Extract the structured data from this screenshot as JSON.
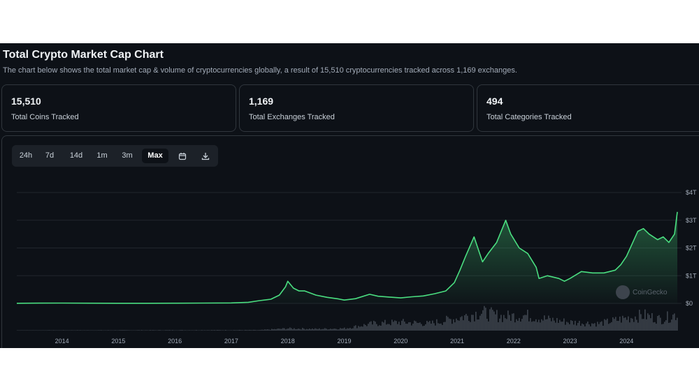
{
  "header": {
    "title": "Total Crypto Market Cap Chart",
    "subtitle": "The chart below shows the total market cap & volume of cryptocurrencies globally, a result of 15,510 cryptocurrencies tracked across 1,169 exchanges."
  },
  "stats": [
    {
      "value": "15,510",
      "label": "Total Coins Tracked"
    },
    {
      "value": "1,169",
      "label": "Total Exchanges Tracked"
    },
    {
      "value": "494",
      "label": "Total Categories Tracked"
    }
  ],
  "toolbar": {
    "ranges": [
      "24h",
      "7d",
      "14d",
      "1m",
      "3m",
      "Max"
    ],
    "selected": "Max",
    "icons": [
      "calendar-icon",
      "download-icon"
    ]
  },
  "watermark": "CoinGecko",
  "colors": {
    "line": "#4ade80",
    "background": "#0d1117",
    "grid": "#21262d",
    "volume": "#3d444d"
  },
  "chart_data": {
    "type": "area",
    "title": "",
    "xlabel": "",
    "ylabel": "",
    "y_unit": "USD",
    "x_ticks": [
      "2014",
      "2015",
      "2016",
      "2017",
      "2018",
      "2019",
      "2020",
      "2021",
      "2022",
      "2023",
      "2024"
    ],
    "y_ticks": [
      "$0",
      "$1T",
      "$2T",
      "$3T",
      "$4T"
    ],
    "ylim": [
      0,
      4
    ],
    "xlim": [
      2013.2,
      2024.9
    ],
    "grid": true,
    "series": [
      {
        "values_unit": "trillion USD",
        "x": [
          2013.2,
          2013.6,
          2014.0,
          2014.5,
          2015.0,
          2015.5,
          2016.0,
          2016.5,
          2017.0,
          2017.3,
          2017.5,
          2017.7,
          2017.85,
          2017.96,
          2018.0,
          2018.1,
          2018.2,
          2018.3,
          2018.5,
          2018.7,
          2018.9,
          2019.0,
          2019.2,
          2019.45,
          2019.6,
          2019.8,
          2020.0,
          2020.2,
          2020.4,
          2020.6,
          2020.8,
          2020.95,
          2021.05,
          2021.15,
          2021.3,
          2021.45,
          2021.55,
          2021.7,
          2021.86,
          2021.95,
          2022.1,
          2022.25,
          2022.4,
          2022.45,
          2022.6,
          2022.8,
          2022.9,
          2023.0,
          2023.2,
          2023.4,
          2023.6,
          2023.8,
          2023.9,
          2024.0,
          2024.2,
          2024.3,
          2024.4,
          2024.55,
          2024.65,
          2024.75,
          2024.85,
          2024.9
        ],
        "values": [
          0.005,
          0.01,
          0.012,
          0.008,
          0.006,
          0.006,
          0.008,
          0.012,
          0.018,
          0.04,
          0.1,
          0.15,
          0.3,
          0.6,
          0.8,
          0.55,
          0.45,
          0.45,
          0.3,
          0.22,
          0.16,
          0.12,
          0.17,
          0.33,
          0.26,
          0.23,
          0.2,
          0.24,
          0.27,
          0.35,
          0.45,
          0.75,
          1.2,
          1.7,
          2.4,
          1.5,
          1.8,
          2.2,
          3.0,
          2.5,
          2.0,
          1.8,
          1.3,
          0.9,
          1.0,
          0.9,
          0.8,
          0.9,
          1.15,
          1.1,
          1.1,
          1.2,
          1.4,
          1.7,
          2.6,
          2.7,
          2.5,
          2.3,
          2.4,
          2.2,
          2.5,
          3.3
        ]
      }
    ],
    "volume_note": "",
    "volume": {
      "x": [
        2013.2,
        2017.5,
        2018.0,
        2018.5,
        2019.0,
        2019.5,
        2020.0,
        2020.5,
        2021.0,
        2021.4,
        2021.8,
        2022.2,
        2022.6,
        2023.0,
        2023.5,
        2024.0,
        2024.3,
        2024.6,
        2024.9
      ],
      "values": [
        0.01,
        0.02,
        0.08,
        0.06,
        0.08,
        0.25,
        0.3,
        0.25,
        0.45,
        0.65,
        0.5,
        0.55,
        0.4,
        0.3,
        0.25,
        0.45,
        0.55,
        0.4,
        0.6
      ]
    }
  }
}
